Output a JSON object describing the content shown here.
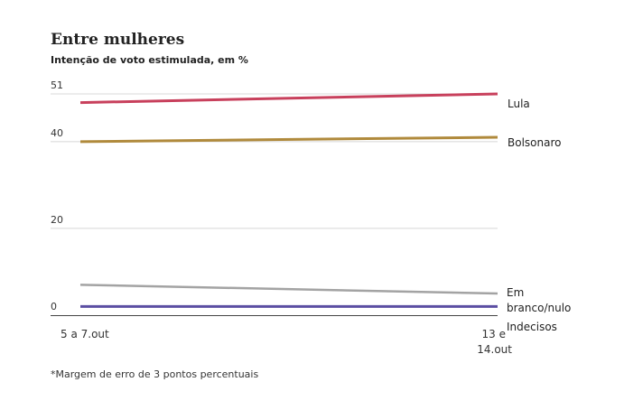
{
  "chart_data": {
    "type": "line",
    "title": "Entre mulheres",
    "subtitle": "Intenção de voto estimulada, em %",
    "footnote": "*Margem de erro de 3 pontos percentuais",
    "x": [
      "5 a 7.out",
      "13 e 14.out"
    ],
    "y_ticks": [
      0,
      20,
      40,
      51
    ],
    "ylim": [
      0,
      51
    ],
    "grid": true,
    "series": [
      {
        "name": "Lula",
        "values": [
          49,
          51
        ],
        "color": "#c8405c"
      },
      {
        "name": "Bolsonaro",
        "values": [
          40,
          41
        ],
        "color": "#b08a3c"
      },
      {
        "name": "Em branco/nulo",
        "values": [
          7,
          5
        ],
        "color": "#a3a3a3"
      },
      {
        "name": "Indecisos",
        "values": [
          2,
          2
        ],
        "color": "#5c4fa3"
      }
    ]
  }
}
